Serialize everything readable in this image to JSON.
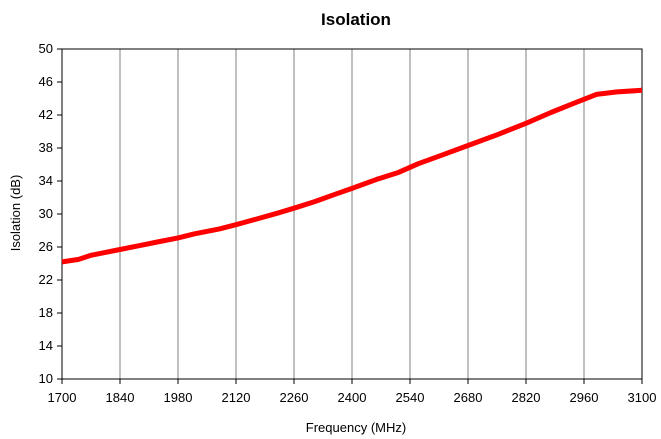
{
  "chart_data": {
    "type": "line",
    "title": "Isolation",
    "xlabel": "Frequency (MHz)",
    "ylabel": "Isolation (dB)",
    "xlim": [
      1700,
      3100
    ],
    "ylim": [
      10,
      50
    ],
    "xticks": [
      1700,
      1840,
      1980,
      2120,
      2260,
      2400,
      2540,
      2680,
      2820,
      2960,
      3100
    ],
    "yticks": [
      10,
      14,
      18,
      22,
      26,
      30,
      34,
      38,
      42,
      46,
      50
    ],
    "grid": "vertical",
    "legend": "none",
    "series": [
      {
        "color": "#ff0000",
        "x": [
          1700,
          1740,
          1770,
          1800,
          1840,
          1880,
          1930,
          1980,
          2020,
          2080,
          2120,
          2170,
          2220,
          2260,
          2310,
          2360,
          2400,
          2460,
          2510,
          2560,
          2610,
          2680,
          2750,
          2820,
          2880,
          2940,
          2990,
          3040,
          3100
        ],
        "y": [
          24.2,
          24.5,
          25.0,
          25.3,
          25.7,
          26.1,
          26.6,
          27.1,
          27.6,
          28.2,
          28.7,
          29.4,
          30.1,
          30.7,
          31.5,
          32.4,
          33.1,
          34.2,
          35.0,
          36.1,
          37.0,
          38.3,
          39.6,
          41.0,
          42.3,
          43.5,
          44.5,
          44.8,
          45.0
        ]
      }
    ]
  }
}
